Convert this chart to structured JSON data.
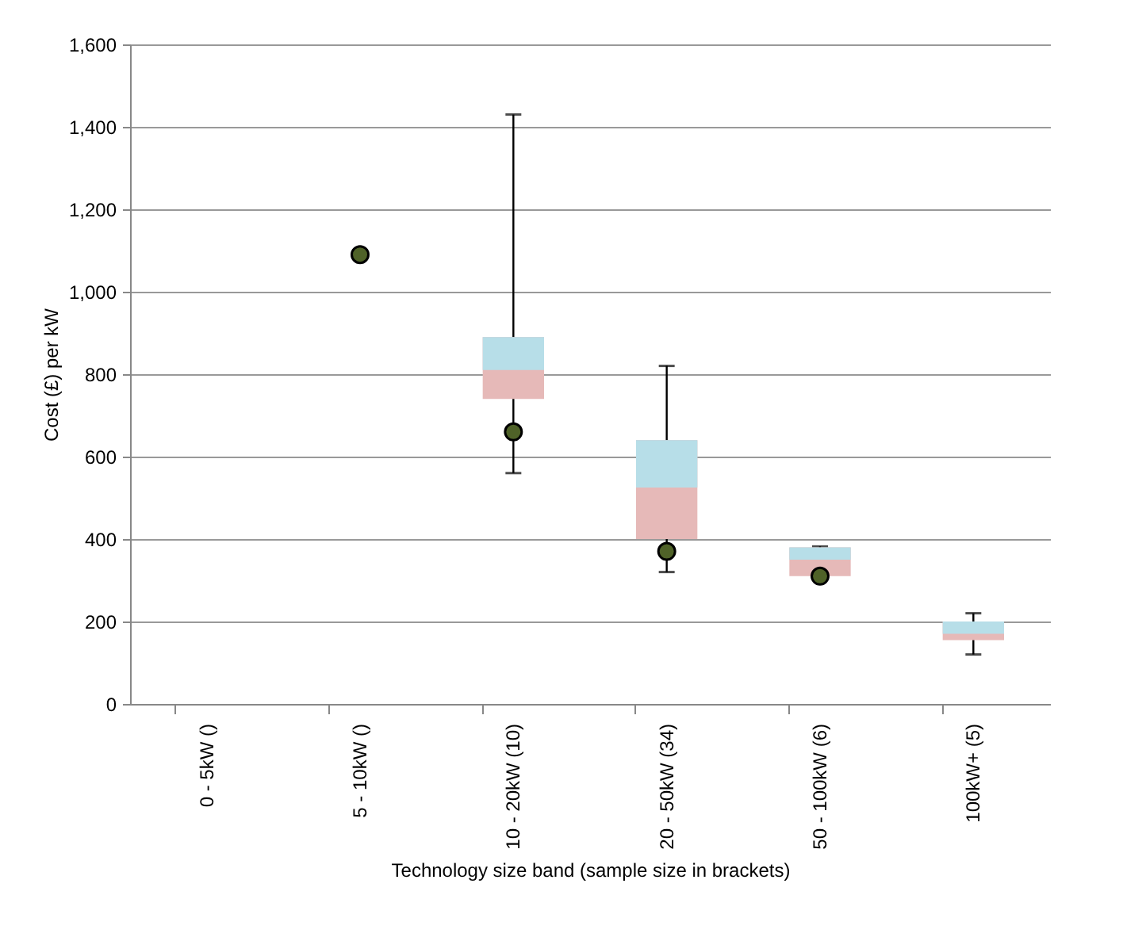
{
  "chart_data": {
    "type": "box",
    "xlabel": "Technology size band (sample size in brackets)",
    "ylabel": "Cost (£) per kW",
    "categories": [
      "0 - 5kW ()",
      "5 - 10kW ()",
      "10 - 20kW (10)",
      "20 - 50kW (34)",
      "50 - 100kW (6)",
      "100kW+ (5)"
    ],
    "ylim": [
      0,
      1600
    ],
    "yticks": [
      0,
      200,
      {
        "value": 400,
        "label": "400"
      },
      600,
      800,
      {
        "value": 1000,
        "label": "1,000"
      },
      {
        "value": 1200,
        "label": "1,200"
      },
      {
        "value": 1400,
        "label": "1,400"
      },
      {
        "value": 1600,
        "label": "1,600"
      }
    ],
    "grid": "y",
    "series": [
      {
        "colors": [
          null,
          null,
          [
            "#e6b9b8",
            "#b7dee8"
          ],
          [
            "#e6b9b8",
            "#b7dee8"
          ],
          [
            "#e6b9b8",
            "#b7dee8"
          ],
          [
            "#e6b9b8",
            "#b7dee8"
          ]
        ],
        "boxes": [
          null,
          null,
          {
            "low": 560,
            "q1": 740,
            "median": 810,
            "q3": 890,
            "high": 1430
          },
          {
            "low": 320,
            "q1": 400,
            "median": 525,
            "q3": 640,
            "high": 820
          },
          {
            "low": 310,
            "q1": 310,
            "median": 350,
            "q3": 380,
            "high": 382
          },
          {
            "low": 120,
            "q1": 155,
            "median": 170,
            "q3": 200,
            "high": 220
          }
        ]
      },
      {
        "type": "scatter",
        "color": "#4f6228",
        "marker": "circle",
        "values": [
          null,
          1090,
          660,
          370,
          310,
          null
        ]
      }
    ]
  }
}
